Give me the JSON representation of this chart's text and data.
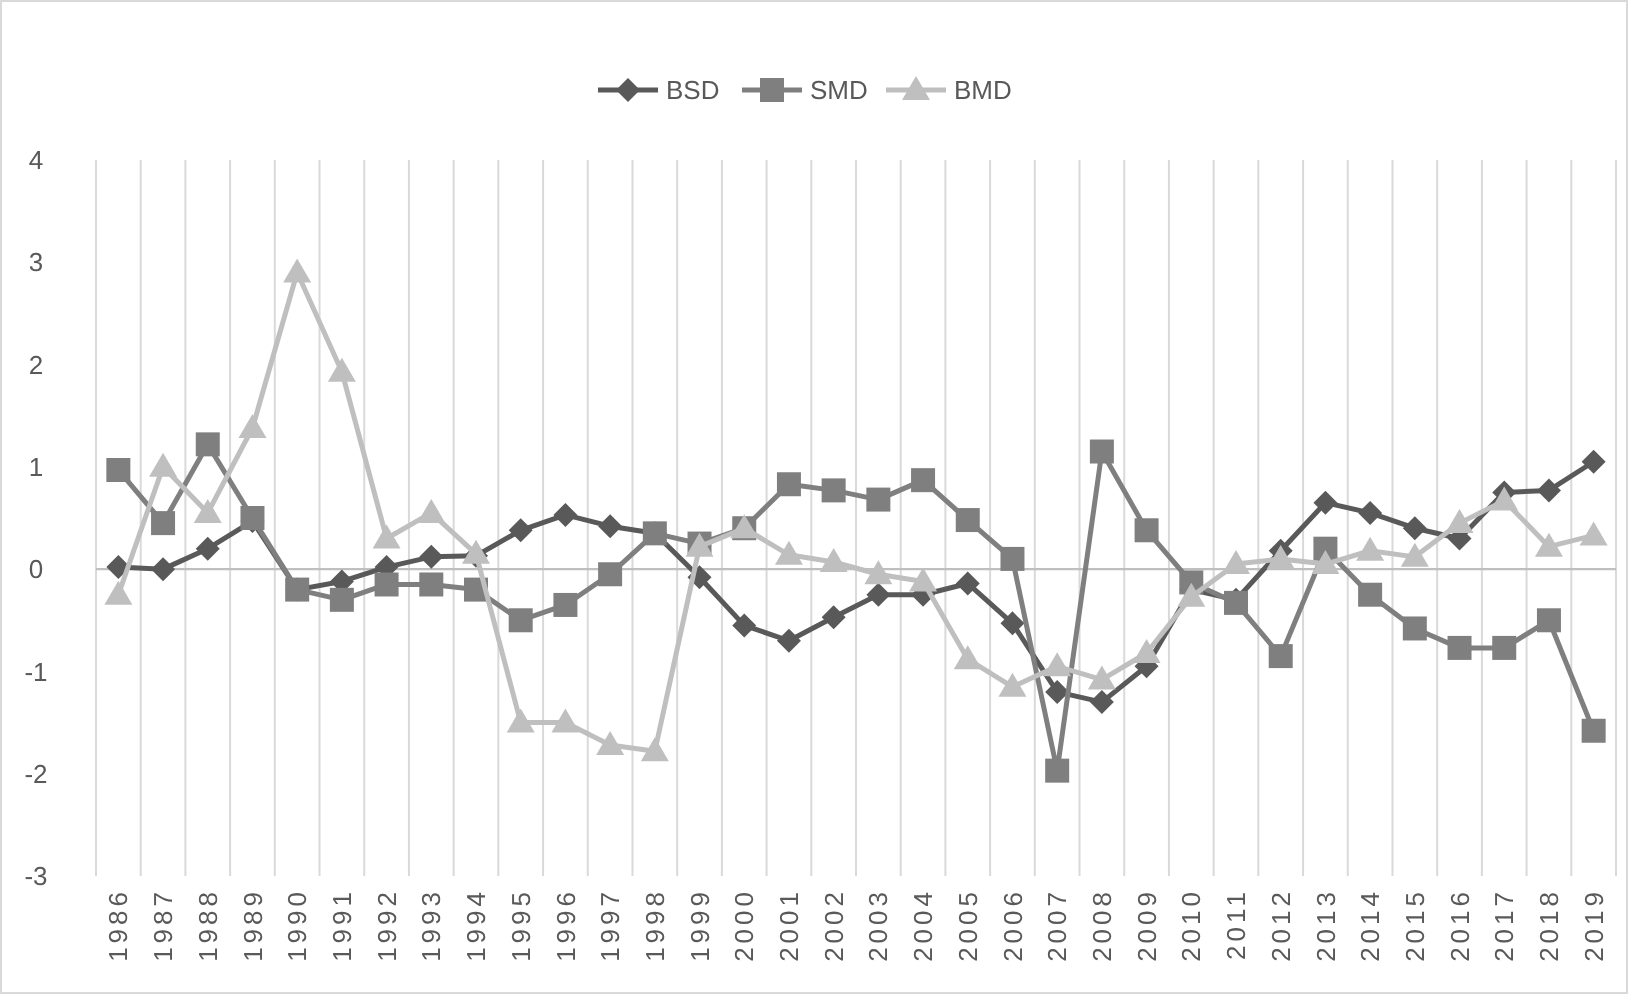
{
  "chart_data": {
    "type": "line",
    "categories": [
      "1986",
      "1987",
      "1988",
      "1989",
      "1990",
      "1991",
      "1992",
      "1993",
      "1994",
      "1995",
      "1996",
      "1997",
      "1998",
      "1999",
      "2000",
      "2001",
      "2002",
      "2003",
      "2004",
      "2005",
      "2006",
      "2007",
      "2008",
      "2009",
      "2010",
      "2011",
      "2012",
      "2013",
      "2014",
      "2015",
      "2016",
      "2017",
      "2018",
      "2019"
    ],
    "series": [
      {
        "name": "BSD",
        "color": "#595959",
        "marker": "diamond",
        "values": [
          0.02,
          0.0,
          0.2,
          0.47,
          -0.2,
          -0.12,
          0.02,
          0.12,
          0.13,
          0.38,
          0.53,
          0.42,
          0.35,
          -0.08,
          -0.55,
          -0.7,
          -0.47,
          -0.25,
          -0.25,
          -0.14,
          -0.53,
          -1.2,
          -1.3,
          -0.95,
          -0.2,
          -0.3,
          0.18,
          0.65,
          0.55,
          0.4,
          0.3,
          0.75,
          0.77,
          1.05
        ]
      },
      {
        "name": "SMD",
        "color": "#7f7f7f",
        "marker": "square",
        "values": [
          0.97,
          0.45,
          1.22,
          0.5,
          -0.2,
          -0.3,
          -0.15,
          -0.15,
          -0.2,
          -0.5,
          -0.35,
          -0.05,
          0.35,
          0.25,
          0.4,
          0.83,
          0.77,
          0.68,
          0.87,
          0.48,
          0.1,
          -1.97,
          1.15,
          0.38,
          -0.13,
          -0.33,
          -0.85,
          0.2,
          -0.25,
          -0.58,
          -0.77,
          -0.77,
          -0.5,
          -1.58
        ]
      },
      {
        "name": "BMD",
        "color": "#bfbfbf",
        "marker": "triangle",
        "values": [
          -0.25,
          1.0,
          0.55,
          1.38,
          2.9,
          1.93,
          0.3,
          0.55,
          0.15,
          -1.5,
          -1.5,
          -1.72,
          -1.78,
          0.22,
          0.4,
          0.14,
          0.07,
          -0.05,
          -0.12,
          -0.88,
          -1.15,
          -0.95,
          -1.08,
          -0.82,
          -0.27,
          0.05,
          0.1,
          0.05,
          0.18,
          0.12,
          0.45,
          0.67,
          0.22,
          0.33
        ]
      }
    ],
    "ylim": [
      -3,
      4
    ],
    "yticks": [
      -3,
      -2,
      -1,
      0,
      1,
      2,
      3,
      4
    ],
    "grid": "x",
    "legend": "top",
    "line_style": "solid"
  }
}
